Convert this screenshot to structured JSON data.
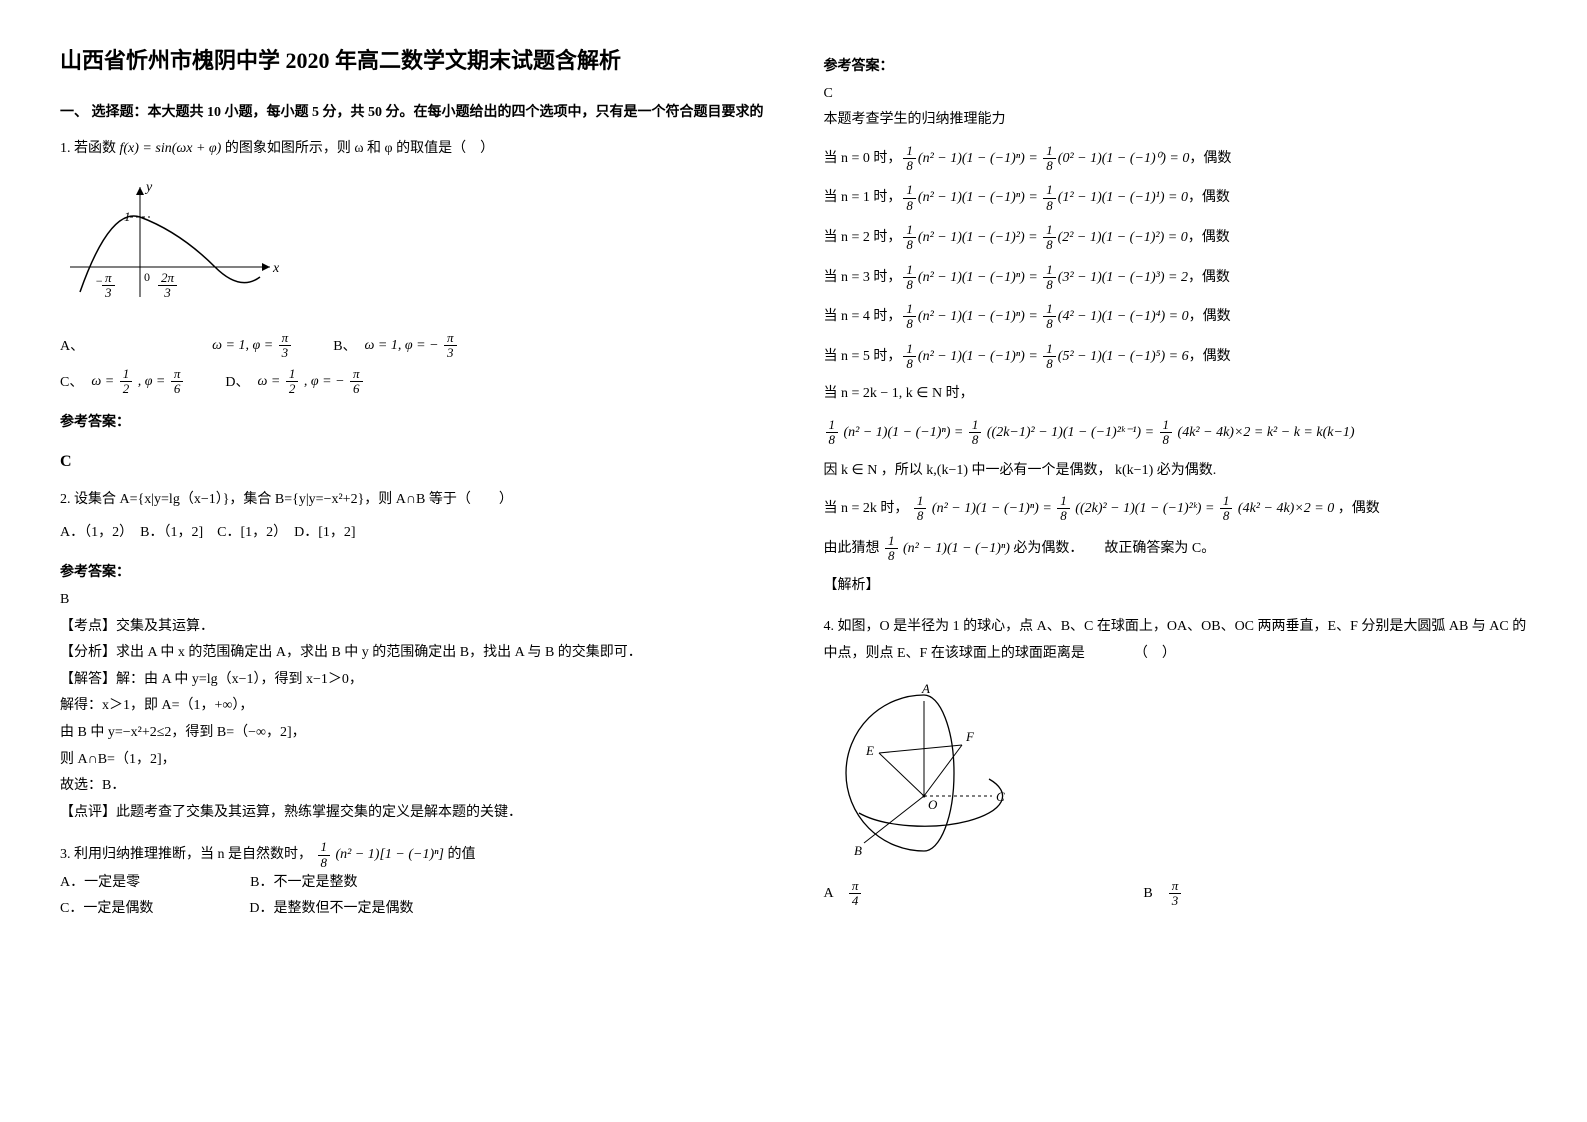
{
  "title": "山西省忻州市槐阴中学 2020 年高二数学文期末试题含解析",
  "section1_head": "一、 选择题：本大题共 10 小题，每小题 5 分，共 50 分。在每小题给出的四个选项中，只有是一个符合题目要求的",
  "q1": {
    "stem_pre": "1. 若函数 ",
    "fn": "f(x) = sin(ωx + φ)",
    "stem_post": " 的图象如图所示，则 ω 和 φ 的取值是（　）",
    "graph": {
      "xlabel": "x",
      "ylabel": "y",
      "ytick": "1",
      "xtick_neg": "− π/3",
      "xtick_zero": "0",
      "xtick_pos": "2π/3",
      "axis_color": "#000000",
      "curve_color": "#000000"
    },
    "opts": {
      "A": {
        "omega": "ω = 1",
        "phi_frac_num": "π",
        "phi_frac_den": "3",
        "phi_sign": ""
      },
      "B": {
        "omega": "ω = 1",
        "phi_frac_num": "π",
        "phi_frac_den": "3",
        "phi_sign": "−"
      },
      "C": {
        "omega_num": "1",
        "omega_den": "2",
        "phi_frac_num": "π",
        "phi_frac_den": "6",
        "phi_sign": ""
      },
      "D": {
        "omega_num": "1",
        "omega_den": "2",
        "phi_frac_num": "π",
        "phi_frac_den": "6",
        "phi_sign": "−"
      }
    },
    "ans_label": "参考答案：",
    "ans": "C"
  },
  "q2": {
    "stem": "2. 设集合 A={x|y=lg（x−1）}，集合 B={y|y=−x²+2}，则 A∩B 等于（　　）",
    "opts": "A．（1，2）　B．（1，2]　C．[1，2）　D．[1，2]",
    "ans_label": "参考答案：",
    "ans": "B",
    "l1": "【考点】交集及其运算．",
    "l2": "【分析】求出 A 中 x 的范围确定出 A，求出 B 中 y 的范围确定出 B，找出 A 与 B 的交集即可．",
    "l3": "【解答】解：由 A 中 y=lg（x−1），得到 x−1＞0，",
    "l4": "解得：x＞1，即 A=（1，+∞），",
    "l5": "由 B 中 y=−x²+2≤2，得到 B=（−∞，2]，",
    "l6": "则 A∩B=（1，2]，",
    "l7": "故选：B．",
    "l8": "【点评】此题考查了交集及其运算，熟练掌握交集的定义是解本题的关键．"
  },
  "q3": {
    "stem_pre": "3. 利用归纳推理推断，当 n 是自然数时，",
    "stem_post": " 的值",
    "expr_num": "1",
    "expr_den": "8",
    "expr_body": "(n² − 1)[1 − (−1)ⁿ]",
    "opts_a": "A．一定是零",
    "opts_b": "B．不一定是整数",
    "opts_c": "C．一定是偶数",
    "opts_d": "D．是整数但不一定是偶数",
    "ans_label": "参考答案：",
    "ans": "C",
    "ans_note": "本题考查学生的归纳推理能力",
    "rows": [
      {
        "when": "当 n = 0 时，",
        "lhs": "(n² − 1)(1 − (−1)ⁿ)",
        "mid": "(0² − 1)(1 − (−1)⁰)",
        "rhs": "= 0",
        "tag": "，偶数"
      },
      {
        "when": "当 n = 1 时，",
        "lhs": "(n² − 1)(1 − (−1)ⁿ)",
        "mid": "(1² − 1)(1 − (−1)¹)",
        "rhs": "= 0",
        "tag": "，偶数"
      },
      {
        "when": "当 n = 2 时，",
        "lhs": "(n² − 1)(1 − (−1)²)",
        "mid": "(2² − 1)(1 − (−1)²)",
        "rhs": "= 0",
        "tag": "，偶数"
      },
      {
        "when": "当 n = 3 时，",
        "lhs": "(n² − 1)(1 − (−1)ⁿ)",
        "mid": "(3² − 1)(1 − (−1)³)",
        "rhs": "= 2",
        "tag": "，偶数"
      },
      {
        "when": "当 n = 4 时，",
        "lhs": "(n² − 1)(1 − (−1)ⁿ)",
        "mid": "(4² − 1)(1 − (−1)⁴)",
        "rhs": "= 0",
        "tag": "，偶数"
      },
      {
        "when": "当 n = 5 时，",
        "lhs": "(n² − 1)(1 − (−1)ⁿ)",
        "mid": "(5² − 1)(1 − (−1)⁵)",
        "rhs": "= 6",
        "tag": "，偶数"
      }
    ],
    "row_2km1": "当 n = 2k − 1, k ∈ N 时，",
    "row_2km1_eq": "(n² − 1)(1 − (−1)ⁿ) = ",
    "row_2km1_mid": "((2k−1)² − 1)(1 − (−1)²ᵏ⁻¹) = ",
    "row_2km1_rhs": "(4k² − 4k)×2 = k² − k = k(k−1)",
    "row_kN": "因 k ∈ N ，所以 k,(k−1) 中一必有一个是偶数， k(k−1) 必为偶数.",
    "row_2k": "当 n = 2k 时，",
    "row_2k_mid": "((2k)² − 1)(1 − (−1)²ᵏ) = ",
    "row_2k_rhs": "(4k² − 4k)×2 = 0",
    "row_2k_tag": "，偶数",
    "guess_pre": "由此猜想 ",
    "guess_post": " 必为偶数．　　故正确答案为 C。",
    "jiexi": "【解析】"
  },
  "q4": {
    "stem": "4. 如图，O 是半径为 1 的球心，点 A、B、C 在球面上，OA、OB、OC 两两垂直，E、F 分别是大圆弧 AB 与 AC 的中点，则点 E、F 在该球面上的球面距离是　　　　（　）",
    "labels": {
      "A": "A",
      "B": "B",
      "C": "C",
      "E": "E",
      "F": "F",
      "O": "O"
    },
    "colors": {
      "line": "#000000",
      "dashed": "#000000"
    },
    "opts": {
      "A": {
        "num": "π",
        "den": "4"
      },
      "B": {
        "num": "π",
        "den": "3"
      }
    }
  }
}
